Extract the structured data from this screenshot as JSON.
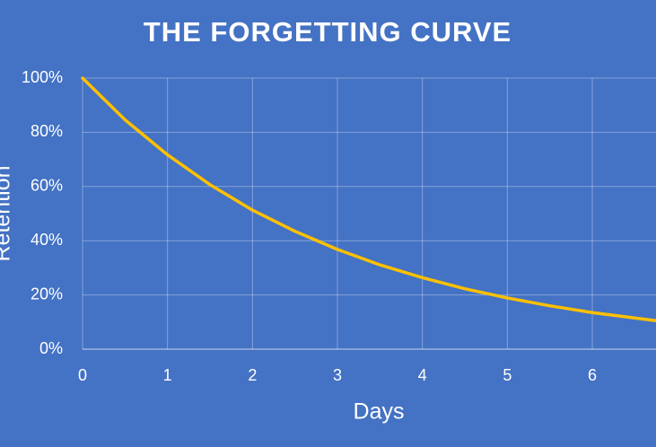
{
  "chart_data": {
    "type": "line",
    "title": "THE FORGETTING CURVE",
    "x_label": "Days",
    "y_label": "Retention",
    "x": [
      0,
      0.5,
      1,
      1.5,
      2,
      2.5,
      3,
      3.5,
      4,
      4.5,
      5,
      5.5,
      6,
      6.5,
      6.75
    ],
    "series": [
      {
        "color": "#ffc000",
        "values": [
          100,
          84.6,
          71.7,
          60.7,
          51.3,
          43.5,
          36.8,
          31.1,
          26.4,
          22.3,
          18.9,
          16.0,
          13.5,
          11.5,
          10.5
        ]
      }
    ],
    "xlim": [
      0,
      6.75
    ],
    "xticks": [
      0,
      1,
      2,
      3,
      4,
      5,
      6
    ],
    "ylim": [
      0,
      100
    ],
    "yticks": [
      {
        "value": 0,
        "label": "0%"
      },
      {
        "value": 20,
        "label": "20%"
      },
      {
        "value": 40,
        "label": "40%"
      },
      {
        "value": 60,
        "label": "60%"
      },
      {
        "value": 80,
        "label": "80%"
      },
      {
        "value": 100,
        "label": "100%"
      }
    ],
    "grid": true
  }
}
